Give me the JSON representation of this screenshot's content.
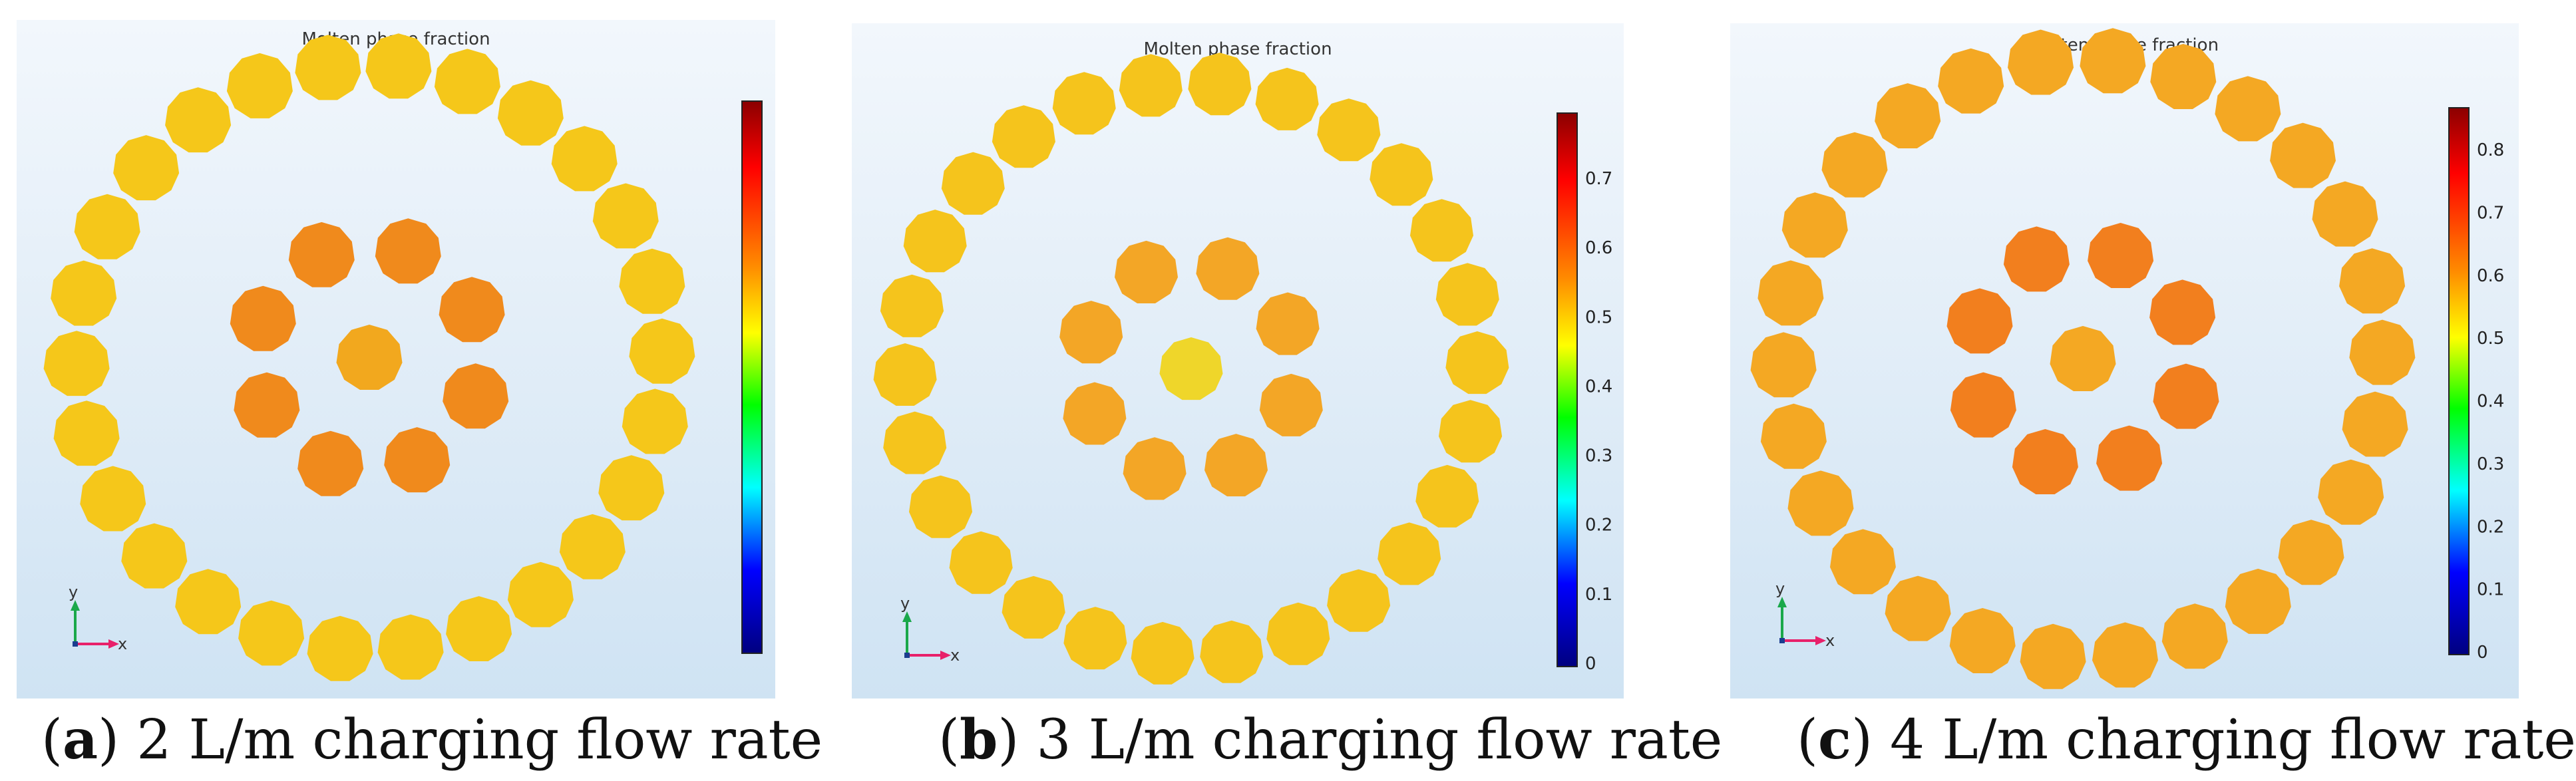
{
  "panels": [
    {
      "title": "Molten phase fraction",
      "caption_letter": "a",
      "caption_text": "2 L/m charging flow rate",
      "colorbar_ticks": [],
      "axis_labels": {
        "y": "y",
        "x": "x"
      }
    },
    {
      "title": "Molten phase fraction",
      "caption_letter": "b",
      "caption_text": "3 L/m charging flow rate",
      "colorbar_ticks": [
        "0.7",
        "0.6",
        "0.5",
        "0.4",
        "0.3",
        "0.2",
        "0.1",
        "0"
      ],
      "axis_labels": {
        "y": "y",
        "x": "x"
      }
    },
    {
      "title": "Molten phase fraction",
      "caption_letter": "c",
      "caption_text": "4 L/m charging flow rate",
      "colorbar_ticks": [
        "0.8",
        "0.7",
        "0.6",
        "0.5",
        "0.4",
        "0.3",
        "0.2",
        "0.1",
        "0"
      ],
      "axis_labels": {
        "y": "y",
        "x": "x"
      }
    }
  ],
  "colors": {
    "yellow_capsule": "#f5c71a",
    "orange_capsule": "#f08a1c",
    "colorbar_top": "#8b0000",
    "colorbar_bottom": "#00007f"
  }
}
